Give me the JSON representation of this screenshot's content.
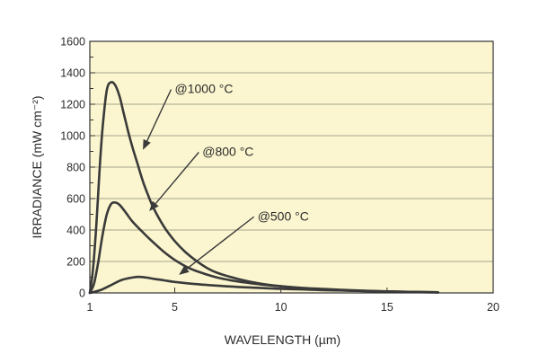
{
  "chart_data": {
    "type": "line",
    "title": "",
    "xlabel": "WAVELENGTH (µm)",
    "ylabel": "IRRADIANCE (mW cm⁻²)",
    "xlim": [
      1,
      20
    ],
    "ylim": [
      0,
      1600
    ],
    "x_ticks": [
      1,
      5,
      10,
      15,
      20
    ],
    "y_ticks": [
      0,
      200,
      400,
      600,
      800,
      1000,
      1200,
      1400,
      1600
    ],
    "grid": "horizontal",
    "background": "#fbf6cf",
    "line_color": "#3a3a3a",
    "series": [
      {
        "name": "@1000 °C",
        "x": [
          1.0,
          1.15,
          1.3,
          1.45,
          1.6,
          1.8,
          2.0,
          2.2,
          2.4,
          2.6,
          2.8,
          3.0,
          3.25,
          3.5,
          3.75,
          4.0,
          4.5,
          5.0,
          5.5,
          6.0,
          6.5,
          7.0,
          8.0,
          9.0,
          10.0,
          11.0,
          12.0,
          13.0,
          14.0,
          15.0,
          16.0,
          17.0,
          17.4
        ],
        "y": [
          0,
          150,
          420,
          760,
          1050,
          1290,
          1340,
          1320,
          1250,
          1140,
          1030,
          930,
          820,
          710,
          620,
          540,
          420,
          330,
          260,
          205,
          160,
          128,
          88,
          60,
          42,
          30,
          22,
          16,
          12,
          9,
          6,
          4,
          3
        ]
      },
      {
        "name": "@800 °C",
        "x": [
          1.0,
          1.2,
          1.4,
          1.6,
          1.8,
          2.0,
          2.2,
          2.4,
          2.7,
          3.0,
          3.5,
          4.0,
          4.5,
          5.0,
          5.5,
          6.0,
          7.0,
          8.0,
          9.0,
          10.0,
          11.0,
          12.0,
          13.0,
          14.0,
          15.0,
          16.0,
          17.0,
          17.4
        ],
        "y": [
          0,
          60,
          200,
          370,
          500,
          565,
          575,
          560,
          510,
          455,
          385,
          320,
          260,
          210,
          170,
          140,
          98,
          72,
          55,
          42,
          32,
          25,
          19,
          14,
          10,
          7,
          4,
          3
        ]
      },
      {
        "name": "@500 °C",
        "x": [
          1.0,
          1.5,
          2.0,
          2.5,
          3.0,
          3.3,
          3.7,
          4.0,
          4.5,
          5.0,
          6.0,
          7.0,
          8.0,
          9.0,
          10.0,
          11.0,
          12.0,
          13.0,
          14.0,
          15.0,
          16.0,
          17.0,
          17.4
        ],
        "y": [
          0,
          18,
          50,
          82,
          98,
          102,
          97,
          90,
          80,
          70,
          56,
          46,
          38,
          32,
          26,
          22,
          18,
          15,
          12,
          9,
          7,
          5,
          4
        ]
      }
    ],
    "annotations": [
      {
        "text": "@1000 °C",
        "series": "@1000 °C",
        "label_x": 5,
        "label_y": 1300,
        "arrow_to_x": 3.5,
        "arrow_to_y": 910
      },
      {
        "text": "@800 °C",
        "series": "@800 °C",
        "label_x": 6.3,
        "label_y": 900,
        "arrow_to_x": 3.8,
        "arrow_to_y": 520
      },
      {
        "text": "@500 °C",
        "series": "@500 °C",
        "label_x": 8.9,
        "label_y": 490,
        "arrow_to_x": 5.2,
        "arrow_to_y": 115
      }
    ]
  }
}
